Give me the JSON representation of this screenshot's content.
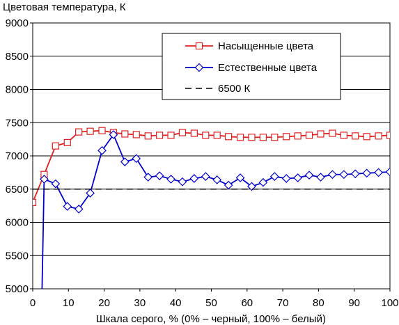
{
  "chart_data": {
    "type": "line",
    "title": "Цветовая температура, К",
    "xlabel": "Шкала серого, % (0% – черный, 100% – белый)",
    "ylabel": "",
    "xlim": [
      0,
      100
    ],
    "ylim": [
      5000,
      9000
    ],
    "xticks": [
      "0",
      "10",
      "20",
      "30",
      "40",
      "50",
      "60",
      "70",
      "80",
      "90",
      "100"
    ],
    "yticks": [
      "5000",
      "5500",
      "6000",
      "6500",
      "7000",
      "7500",
      "8000",
      "8500",
      "9000"
    ],
    "grid": "horizontal",
    "legend_position": "top-right",
    "series": [
      {
        "name": "Насыщенные цвета",
        "color": "#e0201f",
        "marker": "square",
        "x": [
          0,
          3.2,
          6.4,
          9.7,
          12.9,
          16.1,
          19.4,
          22.6,
          25.8,
          29.0,
          32.3,
          35.5,
          38.7,
          41.9,
          45.2,
          48.4,
          51.6,
          54.8,
          58.1,
          61.3,
          64.5,
          67.7,
          71.0,
          74.2,
          77.4,
          80.6,
          83.9,
          87.1,
          90.3,
          93.5,
          96.8,
          100
        ],
        "y": [
          6300,
          6720,
          7150,
          7200,
          7360,
          7370,
          7380,
          7350,
          7330,
          7320,
          7300,
          7310,
          7310,
          7350,
          7340,
          7310,
          7310,
          7290,
          7280,
          7280,
          7280,
          7280,
          7290,
          7300,
          7310,
          7330,
          7340,
          7310,
          7300,
          7290,
          7300,
          7310
        ]
      },
      {
        "name": "Естественные цвета",
        "color": "#0000cc",
        "marker": "diamond",
        "x": [
          2.6,
          3.2,
          6.4,
          9.7,
          12.9,
          16.1,
          19.4,
          22.6,
          25.8,
          29.0,
          32.3,
          35.5,
          38.7,
          41.9,
          45.2,
          48.4,
          51.6,
          54.8,
          58.1,
          61.3,
          64.5,
          67.7,
          71.0,
          74.2,
          77.4,
          80.6,
          83.9,
          87.1,
          90.3,
          93.5,
          96.8,
          100
        ],
        "y": [
          4970,
          6650,
          6580,
          6240,
          6200,
          6440,
          7080,
          7320,
          6910,
          6960,
          6680,
          6700,
          6650,
          6610,
          6660,
          6690,
          6640,
          6560,
          6670,
          6540,
          6600,
          6690,
          6660,
          6670,
          6710,
          6680,
          6720,
          6720,
          6730,
          6740,
          6750,
          6760
        ]
      },
      {
        "name": "6500 К",
        "color": "#000000",
        "marker": "none",
        "dash": "dashed",
        "x": [
          0,
          100
        ],
        "y": [
          6500,
          6500
        ]
      }
    ]
  }
}
